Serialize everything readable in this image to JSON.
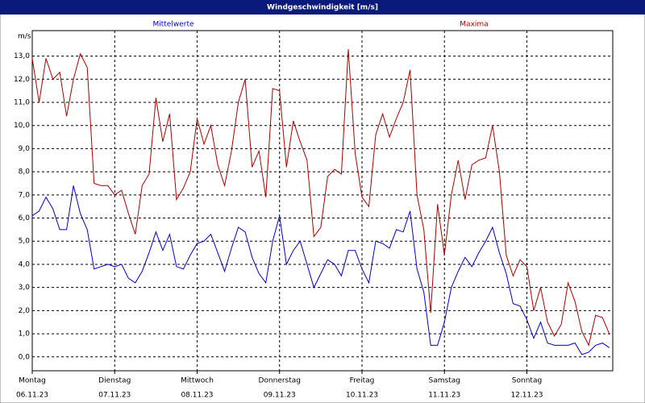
{
  "chart_data": {
    "type": "line",
    "title": "Windgeschwindigkeit [m/s]",
    "y_label": "m/s",
    "x": [
      0,
      2,
      4,
      6,
      8,
      10,
      12,
      14,
      16,
      18,
      20,
      22,
      24,
      26,
      28,
      30,
      32,
      34,
      36,
      38,
      40,
      42,
      44,
      46,
      48,
      50,
      52,
      54,
      56,
      58,
      60,
      62,
      64,
      66,
      68,
      70,
      72,
      74,
      76,
      78,
      80,
      82,
      84,
      86,
      88,
      90,
      92,
      94,
      96,
      98,
      100,
      102,
      104,
      106,
      108,
      110,
      112,
      114,
      116,
      118,
      120,
      122,
      124,
      126,
      128,
      130,
      132,
      134,
      136,
      138,
      140,
      142,
      144,
      146,
      148,
      150,
      152,
      154,
      156,
      158,
      160,
      162,
      164,
      166,
      168
    ],
    "series": [
      {
        "name": "Mittelwerte",
        "color": "#0000cc",
        "values": [
          6.1,
          6.3,
          6.9,
          6.4,
          5.5,
          5.5,
          7.4,
          6.2,
          5.5,
          3.8,
          3.9,
          4.0,
          3.9,
          4.0,
          3.4,
          3.2,
          3.7,
          4.5,
          5.4,
          4.6,
          5.3,
          3.9,
          3.8,
          4.4,
          4.9,
          5.0,
          5.3,
          4.5,
          3.7,
          4.7,
          5.6,
          5.4,
          4.3,
          3.6,
          3.2,
          5.0,
          6.1,
          4.0,
          4.6,
          5.0,
          4.0,
          3.0,
          3.6,
          4.2,
          4.0,
          3.5,
          4.6,
          4.6,
          3.8,
          3.2,
          5.0,
          4.9,
          4.7,
          5.5,
          5.4,
          6.3,
          3.8,
          2.8,
          0.5,
          0.5,
          1.5,
          3.0,
          3.7,
          4.3,
          3.9,
          4.5,
          5.0,
          5.6,
          4.5,
          3.6,
          2.3,
          2.2,
          1.6,
          0.8,
          1.5,
          0.6,
          0.5,
          0.5,
          0.5,
          0.6,
          0.1,
          0.2,
          0.5,
          0.6,
          0.4
        ]
      },
      {
        "name": "Maxima",
        "color": "#aa0000",
        "values": [
          12.9,
          11.0,
          12.9,
          12.0,
          12.3,
          10.4,
          12.0,
          13.1,
          12.5,
          7.5,
          7.4,
          7.4,
          7.0,
          7.2,
          6.2,
          5.3,
          7.4,
          7.9,
          11.2,
          9.3,
          10.5,
          6.8,
          7.3,
          8.0,
          10.3,
          9.2,
          10.0,
          8.3,
          7.4,
          8.9,
          11.0,
          12.0,
          8.2,
          8.9,
          6.9,
          11.6,
          11.5,
          8.2,
          10.2,
          9.3,
          8.5,
          5.2,
          5.6,
          7.8,
          8.1,
          7.9,
          13.3,
          8.8,
          6.9,
          6.5,
          9.6,
          10.5,
          9.5,
          10.3,
          11.0,
          12.4,
          7.0,
          5.5,
          1.9,
          6.6,
          4.4,
          7.0,
          8.5,
          6.8,
          8.3,
          8.5,
          8.6,
          10.0,
          8.0,
          4.4,
          3.5,
          4.2,
          3.9,
          2.0,
          3.0,
          1.5,
          0.9,
          1.4,
          3.2,
          2.4,
          1.1,
          0.5,
          1.8,
          1.7,
          1.0
        ]
      }
    ],
    "xlim": [
      0,
      169
    ],
    "xticks": [
      {
        "value": 0,
        "label": "Montag",
        "date": "06.11.23"
      },
      {
        "value": 24,
        "label": "Dienstag",
        "date": "07.11.23"
      },
      {
        "value": 48,
        "label": "Mittwoch",
        "date": "08.11.23"
      },
      {
        "value": 72,
        "label": "Donnerstag",
        "date": "09.11.23"
      },
      {
        "value": 96,
        "label": "Freitag",
        "date": "10.11.23"
      },
      {
        "value": 120,
        "label": "Samstag",
        "date": "11.11.23"
      },
      {
        "value": 144,
        "label": "Sonntag",
        "date": "12.11.23"
      }
    ],
    "ylim": [
      -0.6,
      14.1
    ],
    "yticks": [
      {
        "value": 0,
        "label": "0,0"
      },
      {
        "value": 1,
        "label": "1,0"
      },
      {
        "value": 2,
        "label": "2,0"
      },
      {
        "value": 3,
        "label": "3,0"
      },
      {
        "value": 4,
        "label": "4,0"
      },
      {
        "value": 5,
        "label": "5,0"
      },
      {
        "value": 6,
        "label": "6,0"
      },
      {
        "value": 7,
        "label": "7,0"
      },
      {
        "value": 8,
        "label": "8,0"
      },
      {
        "value": 9,
        "label": "9,0"
      },
      {
        "value": 10,
        "label": "10,0"
      },
      {
        "value": 11,
        "label": "11,0"
      },
      {
        "value": 12,
        "label": "12,0"
      },
      {
        "value": 13,
        "label": "13,0"
      }
    ],
    "grid": true
  }
}
